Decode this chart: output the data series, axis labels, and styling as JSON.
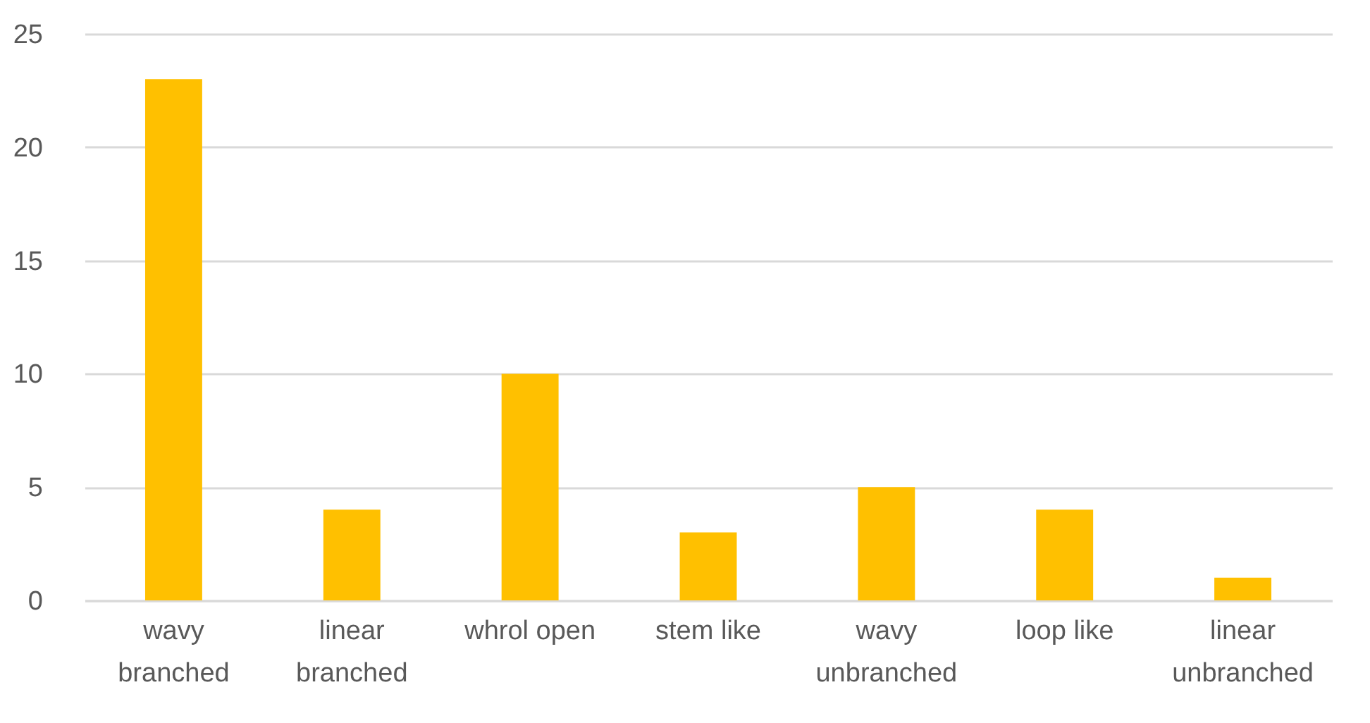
{
  "chart_data": {
    "type": "bar",
    "categories": [
      "wavy\nbranched",
      "linear\nbranched",
      "whrol open",
      "stem like",
      "wavy\nunbranched",
      "loop like",
      "linear\nunbranched"
    ],
    "values": [
      23,
      4,
      10,
      3,
      5,
      4,
      1
    ],
    "color": "#ffc000",
    "ylim": [
      0,
      25
    ],
    "yticks": [
      0,
      5,
      10,
      15,
      20,
      25
    ],
    "grid": "y"
  }
}
